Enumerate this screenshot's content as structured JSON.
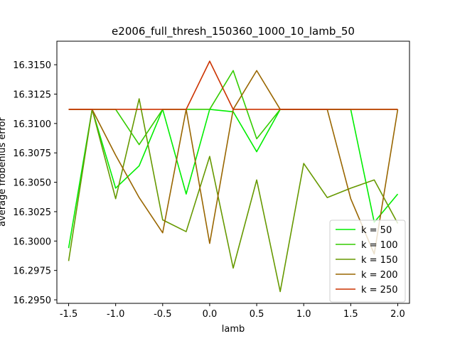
{
  "chart_data": {
    "type": "line",
    "title": "e2006_full_thresh_150360_1000_10_lamb_50",
    "xlabel": "lamb",
    "ylabel": "average frobenius error",
    "xlim": [
      -1.625,
      2.125
    ],
    "ylim": [
      16.2947,
      16.317
    ],
    "xticks": [
      "-1.5",
      "-1.0",
      "-0.5",
      "0.0",
      "0.5",
      "1.0",
      "1.5",
      "2.0"
    ],
    "xtick_values": [
      -1.5,
      -1.0,
      -0.5,
      0.0,
      0.5,
      1.0,
      1.5,
      2.0
    ],
    "yticks": [
      "16.2950",
      "16.2975",
      "16.3000",
      "16.3025",
      "16.3050",
      "16.3075",
      "16.3100",
      "16.3125",
      "16.3150"
    ],
    "ytick_values": [
      16.295,
      16.2975,
      16.3,
      16.3025,
      16.305,
      16.3075,
      16.31,
      16.3125,
      16.315
    ],
    "grid": false,
    "legend_position": "bottom-right",
    "x": [
      -1.5,
      -1.25,
      -1.0,
      -0.75,
      -0.5,
      -0.25,
      0.0,
      0.25,
      0.5,
      0.75,
      1.0,
      1.25,
      1.5,
      1.75,
      2.0
    ],
    "series": [
      {
        "name": "k = 50",
        "color": "#00ee00",
        "values": [
          16.2994,
          16.3112,
          16.3045,
          16.3064,
          16.3112,
          16.304,
          16.3112,
          16.311,
          16.3076,
          16.3112,
          16.3112,
          16.3112,
          16.3112,
          16.3016,
          16.304
        ]
      },
      {
        "name": "k = 100",
        "color": "#33cc00",
        "values": [
          16.3112,
          16.3112,
          16.3112,
          16.3082,
          16.3112,
          16.3112,
          16.3112,
          16.3145,
          16.3087,
          16.3112,
          16.3112,
          16.3112,
          16.3112,
          16.3112,
          16.3112
        ]
      },
      {
        "name": "k = 150",
        "color": "#669900",
        "values": [
          16.2983,
          16.3112,
          16.3036,
          16.3121,
          16.3018,
          16.3008,
          16.3072,
          16.2977,
          16.3052,
          16.2957,
          16.3066,
          16.3037,
          16.3045,
          16.3052,
          16.3015
        ]
      },
      {
        "name": "k = 200",
        "color": "#996600",
        "values": [
          16.3112,
          16.3112,
          16.3073,
          16.3037,
          16.3007,
          16.3112,
          16.2998,
          16.3112,
          16.3145,
          16.3112,
          16.3112,
          16.3112,
          16.3036,
          16.2989,
          16.3112
        ]
      },
      {
        "name": "k = 250",
        "color": "#cc3300",
        "values": [
          16.3112,
          16.3112,
          16.3112,
          16.3112,
          16.3112,
          16.3112,
          16.3153,
          16.3112,
          16.3112,
          16.3112,
          16.3112,
          16.3112,
          16.3112,
          16.3112,
          16.3112
        ]
      }
    ]
  }
}
